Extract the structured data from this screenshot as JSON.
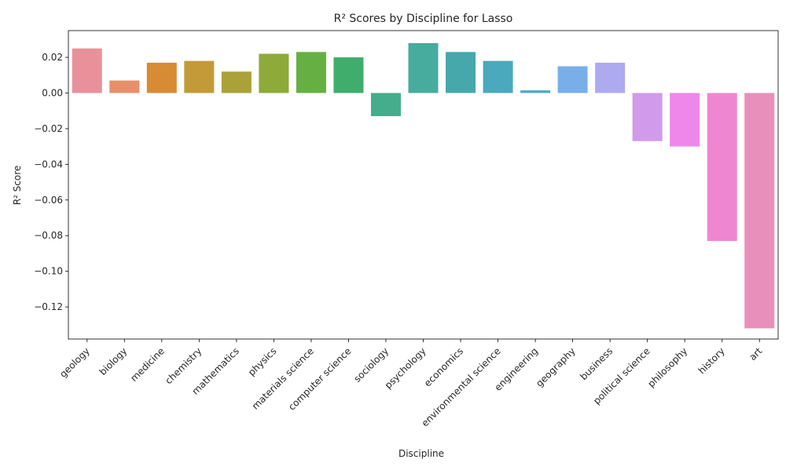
{
  "chart_data": {
    "type": "bar",
    "title": "R² Scores by Discipline for Lasso",
    "xlabel": "Discipline",
    "ylabel": "R² Score",
    "ylim": [
      -0.138,
      0.035
    ],
    "yticks": [
      0.02,
      0.0,
      -0.02,
      -0.04,
      -0.06,
      -0.08,
      -0.1,
      -0.12
    ],
    "ytick_labels": [
      "0.02",
      "0.00",
      "−0.02",
      "−0.04",
      "−0.06",
      "−0.08",
      "−0.10",
      "−0.12"
    ],
    "grid": false,
    "legend": "none",
    "categories": [
      "geology",
      "biology",
      "medicine",
      "chemistry",
      "mathematics",
      "physics",
      "materials science",
      "computer science",
      "sociology",
      "psychology",
      "economics",
      "environmental science",
      "engineering",
      "geography",
      "business",
      "political science",
      "philosophy",
      "history",
      "art"
    ],
    "values": [
      0.025,
      0.007,
      0.017,
      0.018,
      0.012,
      0.022,
      0.023,
      0.02,
      -0.013,
      0.028,
      0.023,
      0.018,
      0.0015,
      0.015,
      0.017,
      -0.027,
      -0.03,
      -0.083,
      -0.132
    ],
    "colors": [
      "#e8919a",
      "#e88f6a",
      "#d68b34",
      "#c29a37",
      "#aaa139",
      "#8eaa39",
      "#66b043",
      "#40ad6c",
      "#45ad8c",
      "#47ab9e",
      "#47a8ab",
      "#4aa9bd",
      "#52a8d1",
      "#7aaee8",
      "#aeaaf0",
      "#d19aea",
      "#ee87ea",
      "#ee87d0",
      "#e98fbb"
    ]
  }
}
